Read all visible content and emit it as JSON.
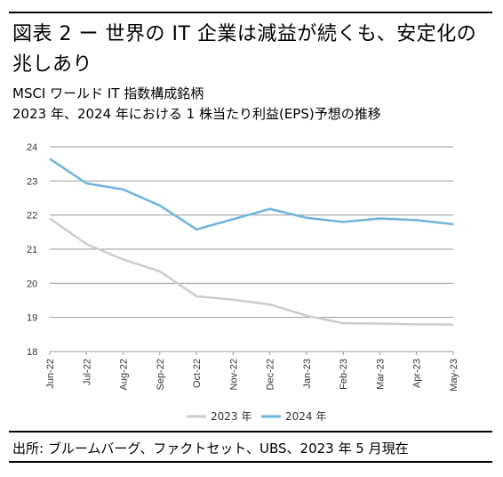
{
  "header": {
    "title": "図表 2 ー 世界の IT 企業は減益が続くも、安定化の兆しあり",
    "subtitle_line1": "MSCI ワールド IT 指数構成銘柄",
    "subtitle_line2": "2023 年、2024 年における 1 株当たり利益(EPS)予想の推移"
  },
  "footer": {
    "source": "出所: ブルームバーグ、ファクトセット、UBS、2023 年 5 月現在"
  },
  "chart_data": {
    "type": "line",
    "categories": [
      "Jun-22",
      "Jul-22",
      "Aug-22",
      "Sep-22",
      "Oct-22",
      "Nov-22",
      "Dec-22",
      "Jan-23",
      "Feb-23",
      "Mar-23",
      "Apr-23",
      "May-23"
    ],
    "series": [
      {
        "name": "2023 年",
        "color": "#cccccc",
        "values": [
          21.9,
          21.15,
          20.7,
          20.35,
          19.62,
          19.52,
          19.38,
          19.05,
          18.83,
          18.82,
          18.8,
          18.79
        ]
      },
      {
        "name": "2024 年",
        "color": "#6fb3dd",
        "values": [
          23.65,
          22.93,
          22.75,
          22.28,
          21.58,
          21.88,
          22.18,
          21.92,
          21.8,
          21.9,
          21.85,
          21.73
        ]
      }
    ],
    "ylim": [
      18,
      24
    ],
    "yticks": [
      18,
      19,
      20,
      21,
      22,
      23,
      24
    ],
    "grid": true,
    "legend": "bottom-center"
  }
}
